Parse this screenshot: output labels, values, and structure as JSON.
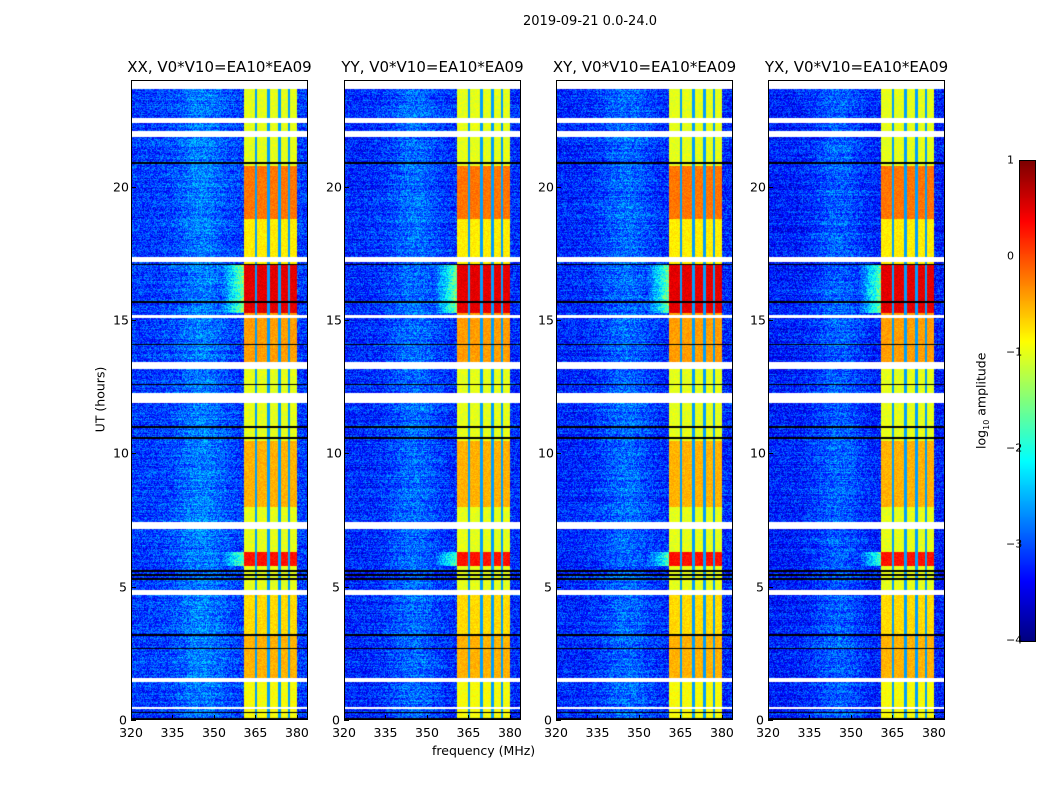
{
  "chart_data": {
    "type": "heatmap",
    "title": "2019-09-21 0.0-24.0",
    "xlabel": "frequency (MHz)",
    "ylabel": "UT (hours)",
    "xlim": [
      320,
      384
    ],
    "ylim": [
      0,
      24
    ],
    "xticks": [
      "320",
      "335",
      "350",
      "365",
      "380"
    ],
    "xtick_values": [
      320,
      335,
      350,
      365,
      380
    ],
    "yticks": [
      "0",
      "5",
      "10",
      "15",
      "20"
    ],
    "ytick_values": [
      0,
      5,
      10,
      15,
      20
    ],
    "panels": [
      {
        "title": "XX, V0*V10=EA10*EA09",
        "background_level": -3.1
      },
      {
        "title": "YY, V0*V10=EA10*EA09",
        "background_level": -3.2
      },
      {
        "title": "XY, V0*V10=EA10*EA09",
        "background_level": -3.2
      },
      {
        "title": "YX, V0*V10=EA10*EA09",
        "background_level": -3.25
      }
    ],
    "signal_band_mhz": [
      360.5,
      380
    ],
    "band_gaps_mhz": [
      365,
      369.5,
      373.5,
      377
    ],
    "band_levels": [
      {
        "ut": [
          0,
          1.5
        ],
        "level": -0.9
      },
      {
        "ut": [
          1.5,
          3.2
        ],
        "level": -0.5
      },
      {
        "ut": [
          3.2,
          4.8
        ],
        "level": -0.7
      },
      {
        "ut": [
          4.8,
          5.8
        ],
        "level": -1.0
      },
      {
        "ut": [
          5.8,
          6.3
        ],
        "level": 0.3
      },
      {
        "ut": [
          6.3,
          8.0
        ],
        "level": -1.0
      },
      {
        "ut": [
          8.0,
          10.5
        ],
        "level": -0.5
      },
      {
        "ut": [
          10.5,
          13.3
        ],
        "level": -1.0
      },
      {
        "ut": [
          13.3,
          15.3
        ],
        "level": -0.4
      },
      {
        "ut": [
          15.3,
          17.1
        ],
        "level": 0.5
      },
      {
        "ut": [
          17.1,
          18.8
        ],
        "level": -0.8
      },
      {
        "ut": [
          18.8,
          20.8
        ],
        "level": -0.2
      },
      {
        "ut": [
          20.8,
          24
        ],
        "level": -1.0
      }
    ],
    "flagged_blank_ut": [
      [
        0.45,
        0.5
      ],
      [
        1.45,
        1.6
      ],
      [
        4.7,
        4.9
      ],
      [
        7.2,
        7.45
      ],
      [
        11.9,
        12.3
      ],
      [
        13.2,
        13.45
      ],
      [
        15.1,
        15.2
      ],
      [
        17.2,
        17.4
      ],
      [
        21.9,
        22.1
      ],
      [
        22.4,
        22.6
      ],
      [
        23.7,
        24
      ]
    ],
    "black_lines_ut": [
      0.3,
      0.05,
      2.7,
      3.2,
      5.3,
      5.45,
      5.6,
      10.6,
      11.0,
      12.6,
      14.1,
      15.7,
      17.1,
      20.9
    ],
    "colorbar": {
      "label": "log10 amplitude",
      "range": [
        -4,
        1
      ],
      "ticks": [
        "1",
        "0",
        "−1",
        "−2",
        "−3",
        "−4"
      ],
      "tick_values": [
        1,
        0,
        -1,
        -2,
        -3,
        -4
      ],
      "colormap": "jet"
    }
  }
}
